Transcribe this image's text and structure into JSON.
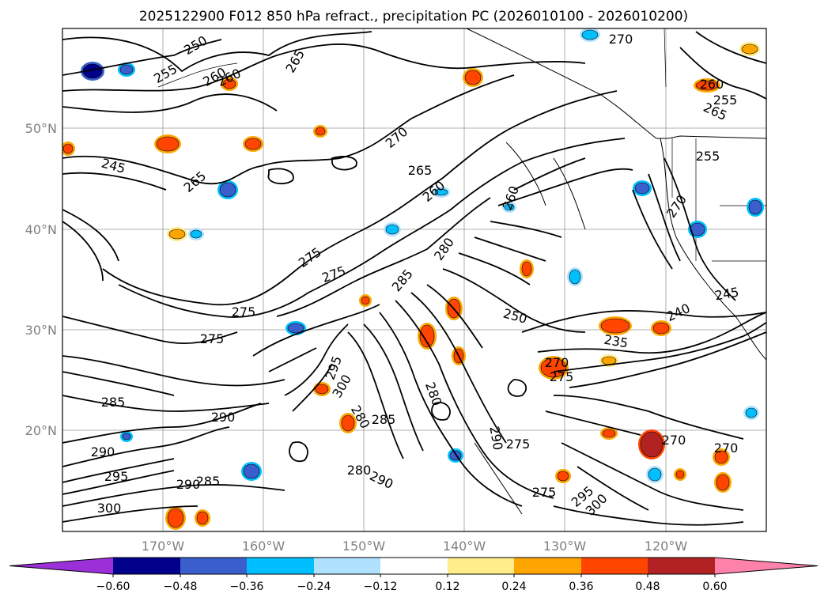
{
  "title": "2025122900 F012 850 hPa refract., precipitation PC (2026010100 - 2026010200)",
  "lat_ticks": [
    "50°N",
    "40°N",
    "30°N",
    "20°N"
  ],
  "lon_ticks": [
    "170°W",
    "160°W",
    "150°W",
    "140°W",
    "130°W",
    "120°W"
  ],
  "colorbar": {
    "colors": [
      "#9b30d9",
      "#00008b",
      "#3a5fcd",
      "#00bfff",
      "#b0e2ff",
      "#ffffff",
      "#ffec8b",
      "#ffa500",
      "#ff4500",
      "#b22222",
      "#ff82ab"
    ],
    "tick_labels": [
      "−0.60",
      "−0.48",
      "−0.36",
      "−0.24",
      "−0.12",
      "0.12",
      "0.24",
      "0.36",
      "0.48",
      "0.60"
    ]
  },
  "contour_labels": [
    "270",
    "250",
    "255",
    "260",
    "260",
    "265",
    "260",
    "255",
    "265",
    "270",
    "265",
    "245",
    "265",
    "260",
    "260",
    "255",
    "270",
    "275",
    "275",
    "280",
    "285",
    "275",
    "275",
    "250",
    "240",
    "245",
    "235",
    "270",
    "275",
    "285",
    "290",
    "280",
    "285",
    "295",
    "300",
    "290",
    "295",
    "285",
    "300",
    "275",
    "275",
    "280",
    "290",
    "270",
    "295",
    "300",
    "270",
    "280",
    "290",
    "290"
  ]
}
